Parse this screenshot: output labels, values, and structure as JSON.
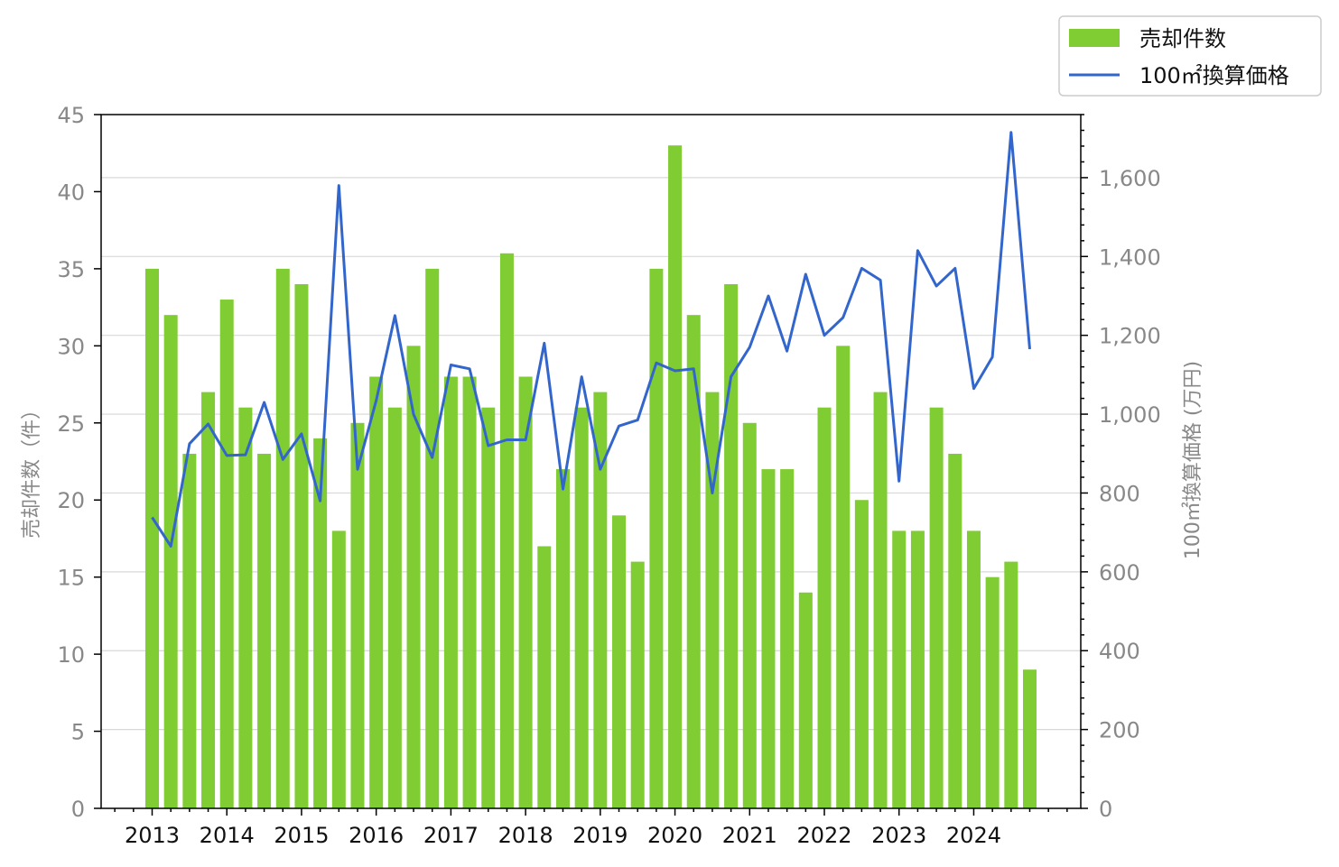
{
  "chart_data": {
    "type": "bar+line",
    "x_tick_labels": [
      "2013",
      "2014",
      "2015",
      "2016",
      "2017",
      "2018",
      "2019",
      "2020",
      "2021",
      "2022",
      "2023",
      "2024"
    ],
    "series": [
      {
        "name": "売却件数",
        "type": "bar",
        "axis": "left",
        "color": "#80cc33",
        "values": [
          35,
          32,
          23,
          27,
          33,
          26,
          23,
          35,
          34,
          24,
          18,
          25,
          28,
          26,
          30,
          35,
          28,
          28,
          26,
          36,
          28,
          17,
          22,
          26,
          27,
          19,
          16,
          35,
          43,
          32,
          27,
          34,
          25,
          22,
          22,
          14,
          26,
          30,
          20,
          27,
          18,
          18,
          26,
          23,
          18,
          15,
          16,
          9
        ]
      },
      {
        "name": "100㎡換算価格",
        "type": "line",
        "axis": "right",
        "color": "#3366cc",
        "values": [
          738,
          665,
          925,
          975,
          895,
          897,
          1030,
          885,
          950,
          780,
          1580,
          860,
          1035,
          1250,
          1000,
          890,
          1125,
          1115,
          920,
          935,
          935,
          1180,
          810,
          1095,
          860,
          970,
          985,
          1130,
          1110,
          1115,
          800,
          1095,
          1170,
          1300,
          1160,
          1355,
          1200,
          1245,
          1370,
          1340,
          830,
          1415,
          1325,
          1370,
          1065,
          1145,
          1715,
          1165
        ]
      }
    ],
    "y_left": {
      "label": "売却件数（件）",
      "min": 0,
      "max": 45,
      "ticks": [
        "0",
        "5",
        "10",
        "15",
        "20",
        "25",
        "30",
        "35",
        "40",
        "45"
      ]
    },
    "y_right": {
      "label": "100㎡換算価格 (万円)",
      "min": 0,
      "max": 1760,
      "ticks": [
        "0",
        "200",
        "400",
        "600",
        "800",
        "1,000",
        "1,200",
        "1,400",
        "1,600"
      ]
    },
    "grid": "horizontal",
    "legend_position": "top-right"
  },
  "colors": {
    "bar": "#80cc33",
    "line": "#3366cc",
    "grid": "#d8d8d8",
    "tick_text": "#888888"
  }
}
